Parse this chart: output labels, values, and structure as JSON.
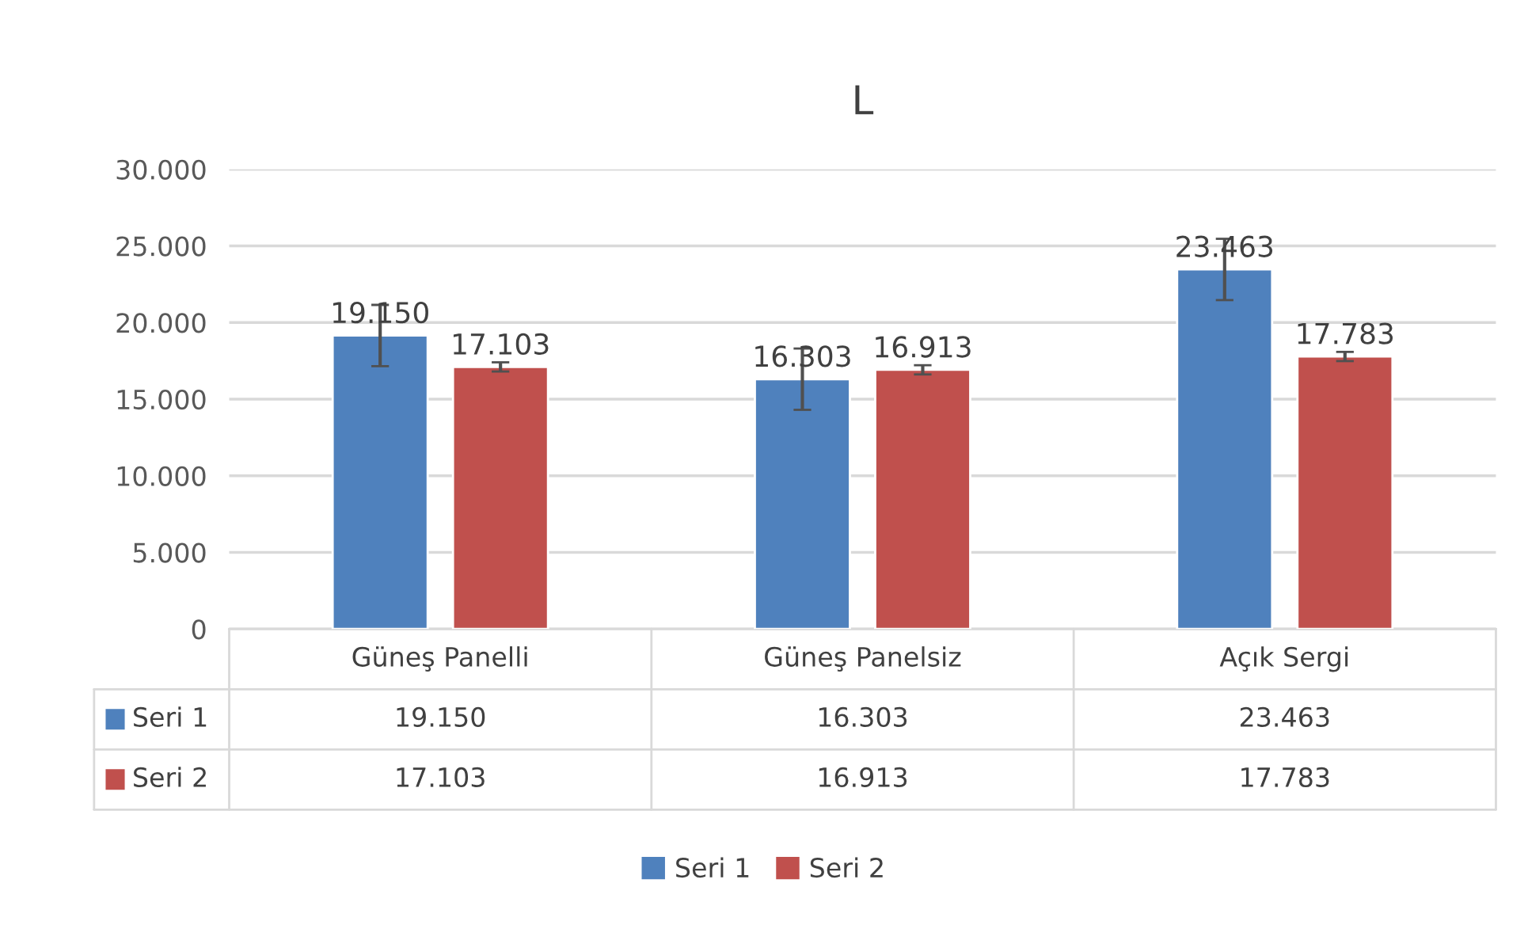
{
  "chart_data": {
    "type": "bar",
    "title": "L",
    "categories": [
      "Güneş Panelli",
      "Güneş Panelsiz",
      "Açık Sergi"
    ],
    "series": [
      {
        "name": "Seri 1",
        "color": "#4f81bd",
        "values": [
          19150,
          16303,
          23463
        ],
        "errors": [
          2000,
          2000,
          2000
        ],
        "value_labels": [
          "19.150",
          "16.303",
          "23.463"
        ]
      },
      {
        "name": "Seri 2",
        "color": "#c0504d",
        "values": [
          17103,
          16913,
          17783
        ],
        "errors": [
          300,
          300,
          300
        ],
        "value_labels": [
          "17.103",
          "16.913",
          "17.783"
        ]
      }
    ],
    "ylim": [
      0,
      30000
    ],
    "yticks": [
      0,
      {
        "value": 5000,
        "label": "5.000"
      },
      {
        "value": 10000,
        "label": "10.000"
      },
      {
        "value": 15000,
        "label": "15.000"
      },
      {
        "value": 20000,
        "label": "20.000"
      },
      {
        "value": 25000,
        "label": "25.000"
      },
      {
        "value": 30000,
        "label": "30.000"
      }
    ],
    "grid": "y",
    "legend": "bottom"
  }
}
